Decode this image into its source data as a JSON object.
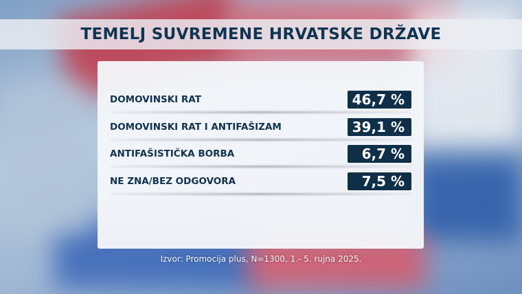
{
  "title": "TEMELJ SUVREMENE HRVATSKE DRŽAVE",
  "chart_data": {
    "type": "table",
    "title": "TEMELJ SUVREMENE HRVATSKE DRŽAVE",
    "categories": [
      "DOMOVINSKI RAT",
      "DOMOVINSKI RAT I ANTIFAŠIZAM",
      "ANTIFAŠISTIČKA BORBA",
      "NE ZNA/BEZ ODGOVORA"
    ],
    "values": [
      46.7,
      39.1,
      6.7,
      7.5
    ],
    "value_labels": [
      "46,7 %",
      "39,1 %",
      "6,7 %",
      "7,5 %"
    ]
  },
  "source": "Izvor: Promocija plus, N=1300, 1.- 5. rujna 2025.",
  "colors": {
    "pill": "#0f2f48",
    "text": "#10324e"
  }
}
